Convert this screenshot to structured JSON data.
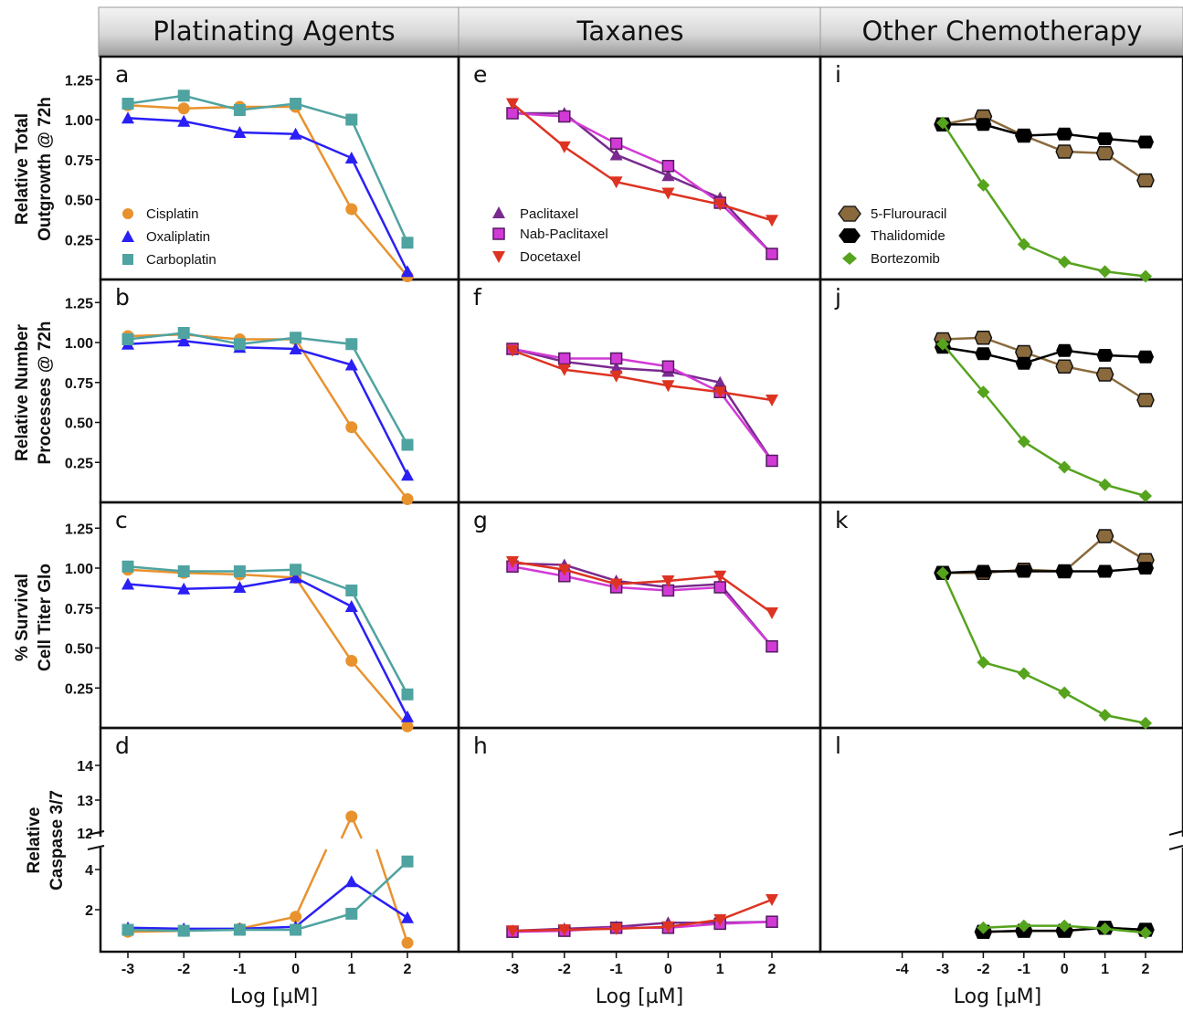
{
  "colors": {
    "cisplatin": "#e8922e",
    "oxaliplatin": "#2a1ff5",
    "carboplatin": "#4fa3a0",
    "paclitaxel": "#7a2a8f",
    "nab_paclitaxel": "#d23ad6",
    "docetaxel": "#dd3322",
    "fluorouracil": "#8a6a3c",
    "thalidomide": "#000000",
    "bortezomib": "#56a31e"
  },
  "headers": [
    "Platinating Agents",
    "Taxanes",
    "Other Chemotherapy"
  ],
  "row_ylabels": [
    [
      "Relative Total",
      "Outgrowth @ 72h"
    ],
    [
      "Relative Number",
      "Processes @ 72h"
    ],
    [
      "% Survival",
      "Cell Titer Glo"
    ],
    [
      "Relative",
      "Caspase 3/7"
    ]
  ],
  "xlabel": "Log [µM]",
  "legends": [
    [
      "Cisplatin",
      "Oxaliplatin",
      "Carboplatin"
    ],
    [
      "Paclitaxel",
      "Nab-Paclitaxel",
      "Docetaxel"
    ],
    [
      "5-Flurouracil",
      "Thalidomide",
      "Bortezomib"
    ]
  ],
  "chart_data": [
    {
      "panel": "a",
      "type": "line",
      "x": [
        -3,
        -2,
        -1,
        0,
        1,
        2
      ],
      "ylim": [
        0,
        1.4
      ],
      "series": [
        {
          "name": "Cisplatin",
          "values": [
            1.09,
            1.07,
            1.08,
            1.08,
            0.44,
            0.02
          ]
        },
        {
          "name": "Oxaliplatin",
          "values": [
            1.01,
            0.99,
            0.92,
            0.91,
            0.76,
            0.05
          ]
        },
        {
          "name": "Carboplatin",
          "values": [
            1.1,
            1.15,
            1.06,
            1.1,
            1.0,
            0.23
          ]
        }
      ]
    },
    {
      "panel": "b",
      "type": "line",
      "x": [
        -3,
        -2,
        -1,
        0,
        1,
        2
      ],
      "ylim": [
        0,
        1.4
      ],
      "series": [
        {
          "name": "Cisplatin",
          "values": [
            1.04,
            1.05,
            1.02,
            1.02,
            0.47,
            0.02
          ]
        },
        {
          "name": "Oxaliplatin",
          "values": [
            0.99,
            1.01,
            0.97,
            0.96,
            0.86,
            0.17
          ]
        },
        {
          "name": "Carboplatin",
          "values": [
            1.02,
            1.06,
            0.99,
            1.03,
            0.99,
            0.36
          ]
        }
      ]
    },
    {
      "panel": "c",
      "type": "line",
      "x": [
        -3,
        -2,
        -1,
        0,
        1,
        2
      ],
      "ylim": [
        0,
        1.4
      ],
      "series": [
        {
          "name": "Cisplatin",
          "values": [
            0.99,
            0.97,
            0.96,
            0.94,
            0.42,
            0.01
          ]
        },
        {
          "name": "Oxaliplatin",
          "values": [
            0.9,
            0.87,
            0.88,
            0.94,
            0.76,
            0.07
          ]
        },
        {
          "name": "Carboplatin",
          "values": [
            1.01,
            0.98,
            0.98,
            0.99,
            0.86,
            0.21
          ]
        }
      ]
    },
    {
      "panel": "d",
      "type": "line",
      "x": [
        -3,
        -2,
        -1,
        0,
        1,
        2
      ],
      "y_ticks_lower": [
        2,
        4
      ],
      "y_ticks_upper": [
        12,
        13,
        14
      ],
      "series": [
        {
          "name": "Cisplatin",
          "values": [
            0.9,
            0.95,
            1.05,
            1.65,
            12.5,
            0.35
          ]
        },
        {
          "name": "Oxaliplatin",
          "values": [
            1.1,
            1.05,
            1.05,
            1.15,
            3.4,
            1.6
          ]
        },
        {
          "name": "Carboplatin",
          "values": [
            1.0,
            0.95,
            1.0,
            1.0,
            1.8,
            4.4
          ]
        }
      ]
    },
    {
      "panel": "e",
      "type": "line",
      "x": [
        -3,
        -2,
        -1,
        0,
        1,
        2
      ],
      "ylim": [
        0,
        1.4
      ],
      "series": [
        {
          "name": "Paclitaxel",
          "values": [
            1.04,
            1.04,
            0.78,
            0.65,
            0.51,
            0.16
          ]
        },
        {
          "name": "Nab-Paclitaxel",
          "values": [
            1.04,
            1.02,
            0.85,
            0.71,
            0.48,
            0.16
          ]
        },
        {
          "name": "Docetaxel",
          "values": [
            1.1,
            0.83,
            0.61,
            0.54,
            0.47,
            0.37
          ]
        }
      ]
    },
    {
      "panel": "f",
      "type": "line",
      "x": [
        -3,
        -2,
        -1,
        0,
        1,
        2
      ],
      "ylim": [
        0,
        1.4
      ],
      "series": [
        {
          "name": "Paclitaxel",
          "values": [
            0.96,
            0.88,
            0.84,
            0.82,
            0.75,
            0.26
          ]
        },
        {
          "name": "Nab-Paclitaxel",
          "values": [
            0.96,
            0.9,
            0.9,
            0.85,
            0.69,
            0.26
          ]
        },
        {
          "name": "Docetaxel",
          "values": [
            0.95,
            0.83,
            0.79,
            0.73,
            0.69,
            0.64
          ]
        }
      ]
    },
    {
      "panel": "g",
      "type": "line",
      "x": [
        -3,
        -2,
        -1,
        0,
        1,
        2
      ],
      "ylim": [
        0,
        1.4
      ],
      "series": [
        {
          "name": "Paclitaxel",
          "values": [
            1.03,
            1.02,
            0.92,
            0.88,
            0.9,
            0.51
          ]
        },
        {
          "name": "Nab-Paclitaxel",
          "values": [
            1.01,
            0.95,
            0.88,
            0.86,
            0.88,
            0.51
          ]
        },
        {
          "name": "Docetaxel",
          "values": [
            1.04,
            0.99,
            0.9,
            0.92,
            0.95,
            0.72
          ]
        }
      ]
    },
    {
      "panel": "h",
      "type": "line",
      "x": [
        -3,
        -2,
        -1,
        0,
        1,
        2
      ],
      "y_ticks_lower": [],
      "y_ticks_upper": [],
      "series": [
        {
          "name": "Paclitaxel",
          "values": [
            0.95,
            1.05,
            1.15,
            1.35,
            1.35,
            1.4
          ]
        },
        {
          "name": "Nab-Paclitaxel",
          "values": [
            0.9,
            0.95,
            1.1,
            1.1,
            1.3,
            1.4
          ]
        },
        {
          "name": "Docetaxel",
          "values": [
            0.95,
            1.0,
            1.05,
            1.15,
            1.5,
            2.5
          ]
        }
      ]
    },
    {
      "panel": "i",
      "type": "line",
      "x": [
        -3,
        -2,
        -1,
        0,
        1,
        2
      ],
      "ylim": [
        0,
        1.4
      ],
      "series": [
        {
          "name": "5-Flurouracil",
          "values": [
            0.97,
            1.02,
            0.9,
            0.8,
            0.79,
            0.62
          ]
        },
        {
          "name": "Thalidomide",
          "values": [
            0.97,
            0.97,
            0.9,
            0.91,
            0.88,
            0.86
          ]
        },
        {
          "name": "Bortezomib",
          "values": [
            0.98,
            0.59,
            0.22,
            0.11,
            0.05,
            0.02
          ]
        }
      ]
    },
    {
      "panel": "j",
      "type": "line",
      "x": [
        -3,
        -2,
        -1,
        0,
        1,
        2
      ],
      "ylim": [
        0,
        1.4
      ],
      "series": [
        {
          "name": "5-Flurouracil",
          "values": [
            1.02,
            1.03,
            0.94,
            0.85,
            0.8,
            0.64
          ]
        },
        {
          "name": "Thalidomide",
          "values": [
            0.97,
            0.93,
            0.87,
            0.95,
            0.92,
            0.91
          ]
        },
        {
          "name": "Bortezomib",
          "values": [
            0.99,
            0.69,
            0.38,
            0.22,
            0.11,
            0.04
          ]
        }
      ]
    },
    {
      "panel": "k",
      "type": "line",
      "x": [
        -3,
        -2,
        -1,
        0,
        1,
        2
      ],
      "ylim": [
        0,
        1.4
      ],
      "series": [
        {
          "name": "5-Flurouracil",
          "values": [
            0.97,
            0.97,
            0.99,
            0.98,
            1.2,
            1.05
          ]
        },
        {
          "name": "Thalidomide",
          "values": [
            0.97,
            0.98,
            0.98,
            0.98,
            0.98,
            1.0
          ]
        },
        {
          "name": "Bortezomib",
          "values": [
            0.97,
            0.41,
            0.34,
            0.22,
            0.08,
            0.03
          ]
        }
      ]
    },
    {
      "panel": "l",
      "type": "line",
      "x": [
        -2,
        -1,
        0,
        1,
        2
      ],
      "x_ticks": [
        -4,
        -3,
        -2,
        -1,
        0,
        1,
        2
      ],
      "series": [
        {
          "name": "5-Flurouracil",
          "values": [
            0.9,
            0.95,
            0.95,
            1.1,
            1.0
          ]
        },
        {
          "name": "Thalidomide",
          "values": [
            0.9,
            0.95,
            0.95,
            1.1,
            1.0
          ]
        },
        {
          "name": "Bortezomib",
          "values": [
            1.1,
            1.2,
            1.2,
            1.05,
            0.85
          ]
        }
      ]
    }
  ],
  "y_ticks_standard": [
    "0.25",
    "0.50",
    "0.75",
    "1.00",
    "1.25"
  ],
  "x_ticks_standard": [
    "-3",
    "-2",
    "-1",
    "0",
    "1",
    "2"
  ],
  "x_ticks_third": [
    "-4",
    "-3",
    "-2",
    "-1",
    "0",
    "1",
    "2"
  ]
}
